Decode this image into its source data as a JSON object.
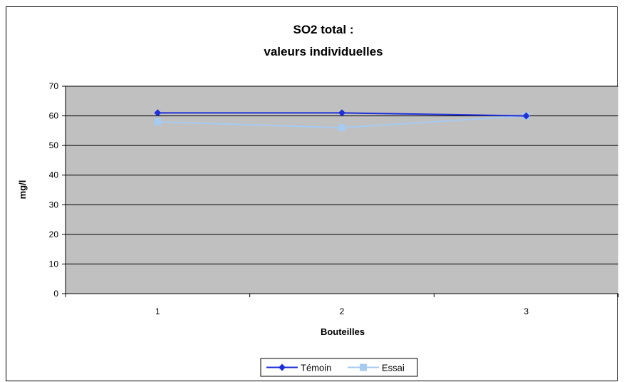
{
  "chart_data": {
    "type": "line",
    "title_lines": [
      "SO2 total :",
      "valeurs individuelles"
    ],
    "xlabel": "Bouteilles",
    "ylabel": "mg/l",
    "categories": [
      "1",
      "2",
      "3"
    ],
    "ylim": [
      0,
      70
    ],
    "yticks": [
      0,
      10,
      20,
      30,
      40,
      50,
      60,
      70
    ],
    "grid": true,
    "plot_background": "#c0c0c0",
    "legend_position": "bottom",
    "series": [
      {
        "name": "Témoin",
        "values": [
          61,
          61,
          60
        ],
        "color": "#1f2fd6",
        "marker": "diamond"
      },
      {
        "name": "Essai",
        "values": [
          58,
          56,
          60
        ],
        "color": "#a6caf0",
        "marker": "square"
      }
    ]
  }
}
